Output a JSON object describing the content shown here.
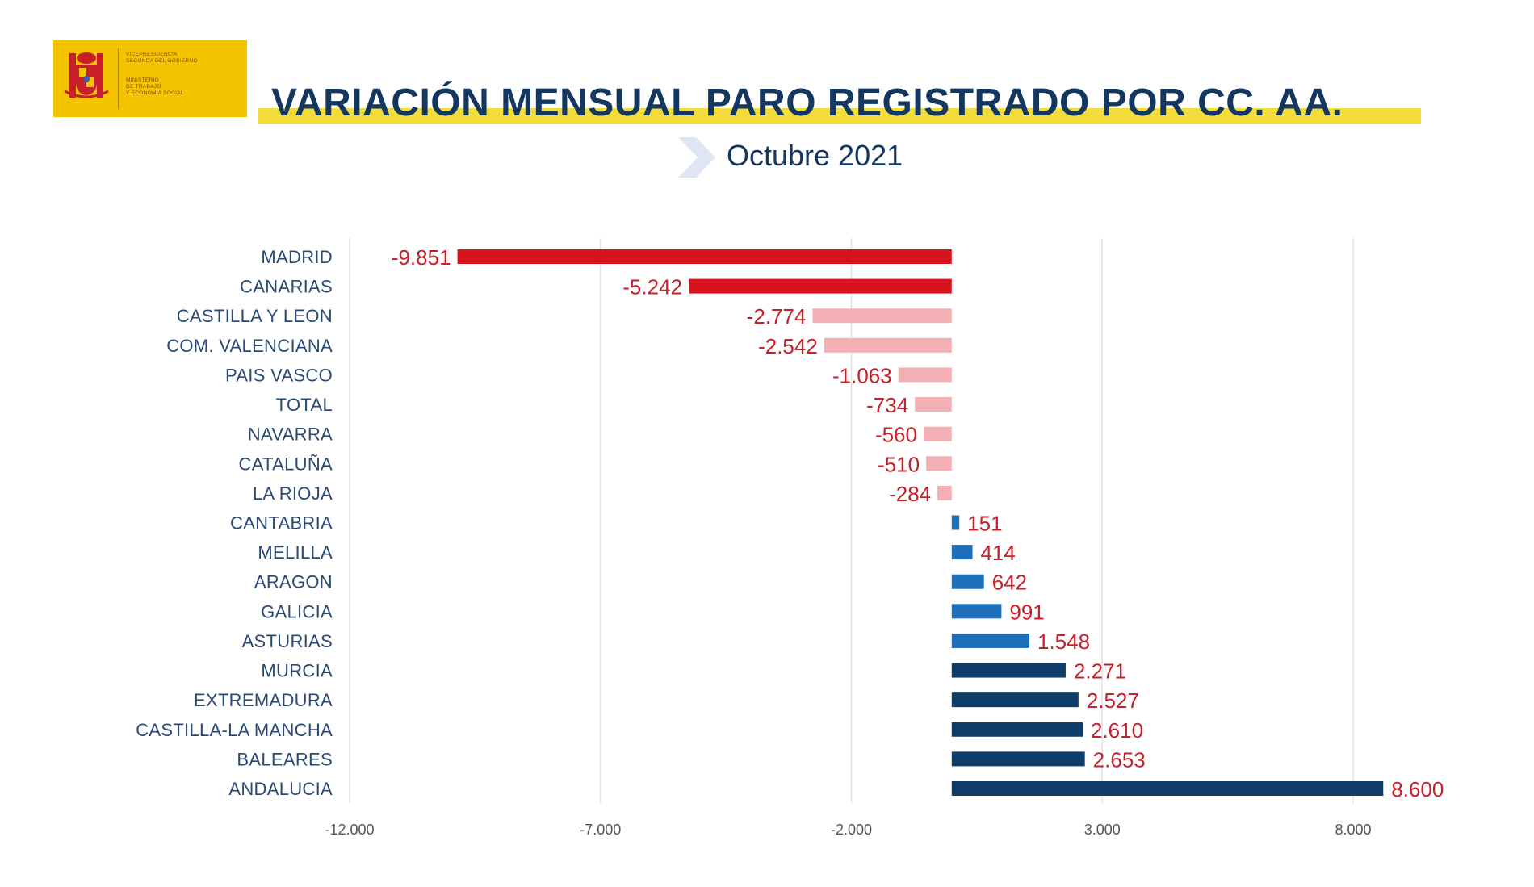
{
  "logo": {
    "lines": [
      "VICEPRESIDENCIA",
      "SEGUNDA DEL GOBIERNO",
      "MINISTERIO",
      "DE TRABAJO",
      "Y ECONOMÍA SOCIAL"
    ]
  },
  "chart_data": {
    "type": "bar",
    "orientation": "horizontal",
    "title": "VARIACIÓN MENSUAL PARO REGISTRADO POR CC. AA.",
    "subtitle": "Octubre 2021",
    "categories": [
      "MADRID",
      "CANARIAS",
      "CASTILLA Y LEON",
      "COM. VALENCIANA",
      "PAIS VASCO",
      "TOTAL",
      "NAVARRA",
      "CATALUÑA",
      "LA RIOJA",
      "CANTABRIA",
      "MELILLA",
      "ARAGON",
      "GALICIA",
      "ASTURIAS",
      "MURCIA",
      "EXTREMADURA",
      "CASTILLA-LA MANCHA",
      "BALEARES",
      "ANDALUCIA"
    ],
    "values": [
      -9851,
      -5242,
      -2774,
      -2542,
      -1063,
      -734,
      -560,
      -510,
      -284,
      151,
      414,
      642,
      991,
      1548,
      2271,
      2527,
      2610,
      2653,
      8600
    ],
    "value_labels": [
      "-9.851",
      "-5.242",
      "-2.774",
      "-2.542",
      "-1.063",
      "-734",
      "-560",
      "-510",
      "-284",
      "151",
      "414",
      "642",
      "991",
      "1.548",
      "2.271",
      "2.527",
      "2.610",
      "2.653",
      "8.600"
    ],
    "xlim": [
      -12000,
      8000
    ],
    "x_ticks": [
      -12000,
      -7000,
      -2000,
      3000,
      8000
    ],
    "x_tick_labels": [
      "-12.000",
      "-7.000",
      "-2.000",
      "3.000",
      "8.000"
    ],
    "grid": true,
    "colors": {
      "strong_negative": "#d7141d",
      "light_negative": "#f2b0b4",
      "light_positive": "#1d6fba",
      "strong_positive": "#103e6b",
      "value_label": "#c8202b"
    }
  }
}
